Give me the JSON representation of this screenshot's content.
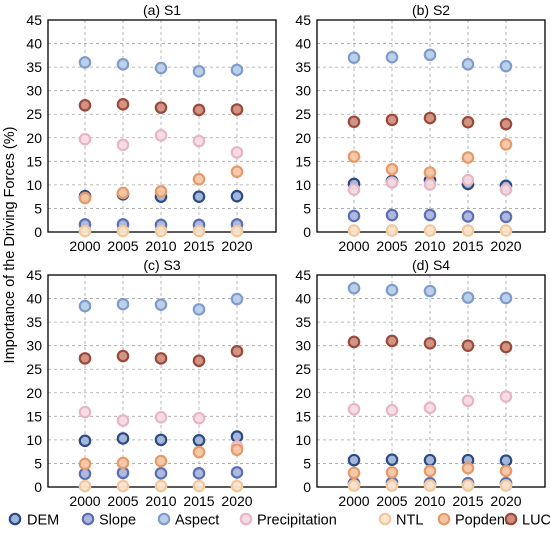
{
  "figure": {
    "ylabel": "Importance of the Driving Forces (%)"
  },
  "legend": [
    {
      "name": "DEM",
      "fill": "#9fb3d6",
      "stroke": "#2b4a86"
    },
    {
      "name": "Slope",
      "fill": "#aab5db",
      "stroke": "#5a6fb5"
    },
    {
      "name": "Aspect",
      "fill": "#b9cde8",
      "stroke": "#7e9ccc"
    },
    {
      "name": "Precipitation",
      "fill": "#f5dbe3",
      "stroke": "#e7b5c6"
    },
    {
      "name": "NTL",
      "fill": "#fbe6cf",
      "stroke": "#f2c79b"
    },
    {
      "name": "Popdens",
      "fill": "#f4c6a6",
      "stroke": "#e79a68"
    },
    {
      "name": "LUCC",
      "fill": "#cf8e7e",
      "stroke": "#9a4a3b"
    }
  ],
  "chart_data": [
    {
      "type": "scatter",
      "title": "(a) S1",
      "categories": [
        "2000",
        "2005",
        "2010",
        "2015",
        "2020"
      ],
      "ylim": [
        0,
        45
      ],
      "yticks": [
        0,
        5,
        10,
        15,
        20,
        25,
        30,
        35,
        40,
        45
      ],
      "grid": true,
      "series": [
        {
          "name": "DEM",
          "values": [
            7.6,
            8.0,
            7.5,
            7.5,
            7.6
          ]
        },
        {
          "name": "Slope",
          "values": [
            1.6,
            1.6,
            1.5,
            1.5,
            1.6
          ]
        },
        {
          "name": "Aspect",
          "values": [
            36.0,
            35.6,
            34.8,
            34.1,
            34.4
          ]
        },
        {
          "name": "Precipitation",
          "values": [
            19.7,
            18.5,
            20.5,
            19.3,
            16.9
          ]
        },
        {
          "name": "NTL",
          "values": [
            0.2,
            0.2,
            0.2,
            0.2,
            0.2
          ]
        },
        {
          "name": "Popdens",
          "values": [
            7.2,
            8.3,
            8.6,
            11.2,
            12.8
          ]
        },
        {
          "name": "LUCC",
          "values": [
            26.9,
            27.1,
            26.4,
            25.9,
            26.0
          ]
        }
      ]
    },
    {
      "type": "scatter",
      "title": "(b) S2",
      "categories": [
        "2000",
        "2005",
        "2010",
        "2015",
        "2020"
      ],
      "ylim": [
        0,
        45
      ],
      "yticks": [
        0,
        5,
        10,
        15,
        20,
        25,
        30,
        35,
        40,
        45
      ],
      "grid": true,
      "series": [
        {
          "name": "DEM",
          "values": [
            10.2,
            10.8,
            11.0,
            10.2,
            9.8
          ]
        },
        {
          "name": "Slope",
          "values": [
            3.4,
            3.6,
            3.6,
            3.3,
            3.2
          ]
        },
        {
          "name": "Aspect",
          "values": [
            37.0,
            37.1,
            37.6,
            35.6,
            35.2
          ]
        },
        {
          "name": "Precipitation",
          "values": [
            9.0,
            10.5,
            10.1,
            11.0,
            9.0
          ]
        },
        {
          "name": "NTL",
          "values": [
            0.3,
            0.3,
            0.3,
            0.3,
            0.3
          ]
        },
        {
          "name": "Popdens",
          "values": [
            16.0,
            13.3,
            12.6,
            15.8,
            18.6
          ]
        },
        {
          "name": "LUCC",
          "values": [
            23.4,
            23.8,
            24.2,
            23.3,
            22.9
          ]
        }
      ]
    },
    {
      "type": "scatter",
      "title": "(c) S3",
      "categories": [
        "2000",
        "2005",
        "2010",
        "2015",
        "2020"
      ],
      "ylim": [
        0,
        45
      ],
      "yticks": [
        0,
        5,
        10,
        15,
        20,
        25,
        30,
        35,
        40,
        45
      ],
      "grid": true,
      "series": [
        {
          "name": "DEM",
          "values": [
            9.8,
            10.3,
            10.0,
            9.9,
            10.7
          ]
        },
        {
          "name": "Slope",
          "values": [
            2.8,
            3.0,
            2.9,
            2.9,
            3.1
          ]
        },
        {
          "name": "Aspect",
          "values": [
            38.4,
            38.8,
            38.7,
            37.7,
            39.9
          ]
        },
        {
          "name": "Precipitation",
          "values": [
            15.9,
            14.1,
            14.8,
            14.6,
            8.6
          ]
        },
        {
          "name": "NTL",
          "values": [
            0.2,
            0.2,
            0.2,
            0.2,
            0.2
          ]
        },
        {
          "name": "Popdens",
          "values": [
            4.9,
            5.1,
            5.5,
            7.4,
            7.9
          ]
        },
        {
          "name": "LUCC",
          "values": [
            27.3,
            27.8,
            27.3,
            26.8,
            28.8
          ]
        }
      ]
    },
    {
      "type": "scatter",
      "title": "(d) S4",
      "categories": [
        "2000",
        "2005",
        "2010",
        "2015",
        "2020"
      ],
      "ylim": [
        0,
        45
      ],
      "yticks": [
        0,
        5,
        10,
        15,
        20,
        25,
        30,
        35,
        40,
        45
      ],
      "grid": true,
      "series": [
        {
          "name": "DEM",
          "values": [
            5.7,
            5.8,
            5.7,
            5.7,
            5.6
          ]
        },
        {
          "name": "Slope",
          "values": [
            0.8,
            0.9,
            0.8,
            0.8,
            0.8
          ]
        },
        {
          "name": "Aspect",
          "values": [
            42.2,
            41.8,
            41.6,
            40.2,
            40.1
          ]
        },
        {
          "name": "Precipitation",
          "values": [
            16.5,
            16.3,
            16.8,
            18.3,
            19.2
          ]
        },
        {
          "name": "NTL",
          "values": [
            0.3,
            0.3,
            0.3,
            0.3,
            0.3
          ]
        },
        {
          "name": "Popdens",
          "values": [
            3.0,
            3.1,
            3.4,
            4.0,
            3.4
          ]
        },
        {
          "name": "LUCC",
          "values": [
            30.8,
            31.0,
            30.5,
            30.0,
            29.7
          ]
        }
      ]
    }
  ]
}
